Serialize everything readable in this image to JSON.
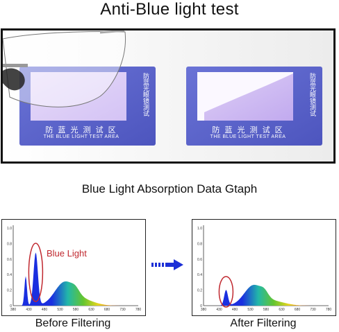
{
  "header": {
    "title": "Anti-Blue light test"
  },
  "cards": {
    "vertical_text": "防蓝光眼镜测试",
    "area_cn": "防 蓝 光 测 试 区",
    "area_en": "THE BLUE LIGHT TEST AREA"
  },
  "section": {
    "subtitle": "Blue Light Absorption Data Gtaph"
  },
  "graphs": {
    "y_ticks": [
      "1.0",
      "0.8",
      "0.6",
      "0.4",
      "0.2",
      "0"
    ],
    "x_ticks": [
      "380",
      "430",
      "480",
      "530",
      "580",
      "630",
      "680",
      "730",
      "780"
    ],
    "annotation": "Blue Light",
    "before_caption": "Before Filtering",
    "after_caption": "After Filtering"
  },
  "colors": {
    "card_blue": "#5a63c9",
    "annotation_red": "#c0282f",
    "arrow_blue": "#1c2fd6"
  }
}
